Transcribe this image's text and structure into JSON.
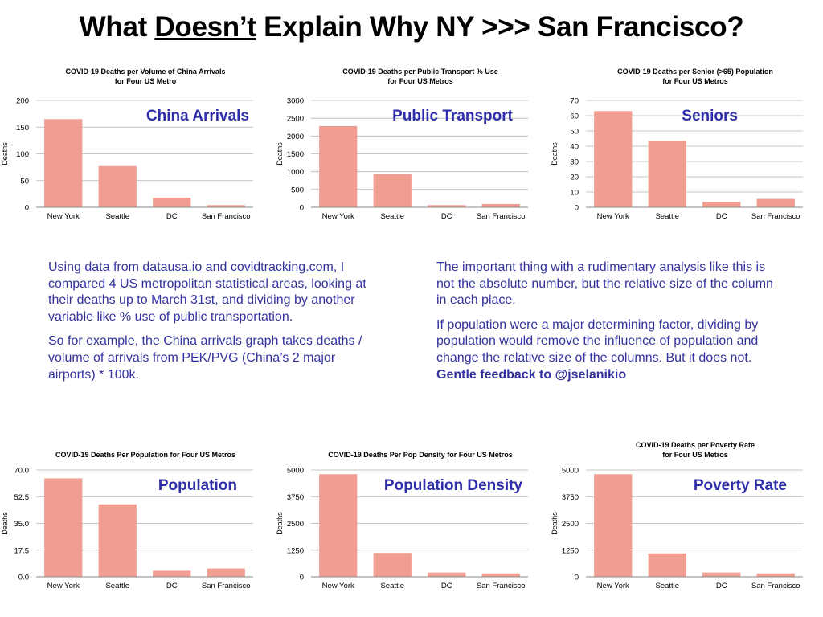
{
  "title": {
    "prefix": "What ",
    "underlined": "Doesn’t",
    "suffix": " Explain Why NY >>> San Francisco?"
  },
  "colors": {
    "bar": "#f19d92",
    "grid": "#b5b5b5",
    "overlay_text": "#2e2ea8",
    "body_text": "#33339e"
  },
  "left_text": {
    "p1_a": "Using data from ",
    "link1": "datausa.io",
    "p1_b": " and ",
    "link2": "covidtracking.com",
    "p1_c": ", I compared 4 US metropolitan statistical areas, looking at their deaths up to March 31st, and dividing by another variable like % use of public transportation.",
    "p2": "So for example, the China arrivals graph takes deaths / volume of arrivals from PEK/PVG (China’s 2 major airports) * 100k."
  },
  "right_text": {
    "p1": "The important thing with a rudimentary analysis like this is not the absolute number, but the relative size of the column in each place.",
    "p2": "If population were a major determining factor, dividing by population would remove the influence of population and change the relative size of the columns. But it does not. ",
    "p2_bold": "Gentle feedback to @jselanikio"
  },
  "chart_data": [
    {
      "type": "bar",
      "title_lines": [
        "COVID-19 Deaths per Volume of China Arrivals",
        "for Four US Metro"
      ],
      "overlay_label": "China Arrivals",
      "ylabel": "Deaths",
      "categories": [
        "New York",
        "Seattle",
        "DC",
        "San Francisco"
      ],
      "values": [
        165,
        77,
        18,
        4
      ],
      "ylim": [
        0,
        200
      ],
      "yticks": [
        "0",
        "50",
        "100",
        "150",
        "200"
      ],
      "grid": true
    },
    {
      "type": "bar",
      "title_lines": [
        "COVID-19 Deaths per Public Transport % Use",
        "for Four US Metros"
      ],
      "overlay_label": "Public Transport",
      "ylabel": "Deaths",
      "categories": [
        "New York",
        "Seattle",
        "DC",
        "San Francisco"
      ],
      "values": [
        2280,
        940,
        60,
        90
      ],
      "ylim": [
        0,
        3000
      ],
      "yticks": [
        "0",
        "500",
        "1000",
        "1500",
        "2000",
        "2500",
        "3000"
      ],
      "grid": true
    },
    {
      "type": "bar",
      "title_lines": [
        "COVID-19 Deaths per Senior (>65) Population",
        "for Four US Metros"
      ],
      "overlay_label": "Seniors",
      "ylabel": "Deaths",
      "categories": [
        "New York",
        "Seattle",
        "DC",
        "San Francisco"
      ],
      "values": [
        63,
        43.5,
        3.5,
        5.5
      ],
      "ylim": [
        0,
        70
      ],
      "yticks": [
        "0",
        "10",
        "20",
        "30",
        "40",
        "50",
        "60",
        "70"
      ],
      "grid": true
    },
    {
      "type": "bar",
      "title_lines": [
        "COVID-19 Deaths Per Population  for Four US Metros"
      ],
      "overlay_label": "Population",
      "ylabel": "Deaths",
      "categories": [
        "New York",
        "Seattle",
        "DC",
        "San Francisco"
      ],
      "values": [
        64.5,
        47.5,
        4,
        5.5
      ],
      "ylim": [
        0,
        70
      ],
      "yticks": [
        "0.0",
        "17.5",
        "35.0",
        "52.5",
        "70.0"
      ],
      "grid": true
    },
    {
      "type": "bar",
      "title_lines": [
        "COVID-19 Deaths Per Pop Density for Four US Metros"
      ],
      "overlay_label": "Population Density",
      "ylabel": "Deaths",
      "categories": [
        "New York",
        "Seattle",
        "DC",
        "San Francisco"
      ],
      "values": [
        4800,
        1120,
        200,
        160
      ],
      "ylim": [
        0,
        5000
      ],
      "yticks": [
        "0",
        "1250",
        "2500",
        "3750",
        "5000"
      ],
      "grid": true
    },
    {
      "type": "bar",
      "title_lines": [
        "COVID-19 Deaths per Poverty Rate",
        "for Four US Metros"
      ],
      "overlay_label": "Poverty Rate",
      "ylabel": "Deaths",
      "categories": [
        "New York",
        "Seattle",
        "DC",
        "San Francisco"
      ],
      "values": [
        4800,
        1100,
        200,
        160
      ],
      "ylim": [
        0,
        5000
      ],
      "yticks": [
        "0",
        "1250",
        "2500",
        "3750",
        "5000"
      ],
      "grid": true
    }
  ]
}
